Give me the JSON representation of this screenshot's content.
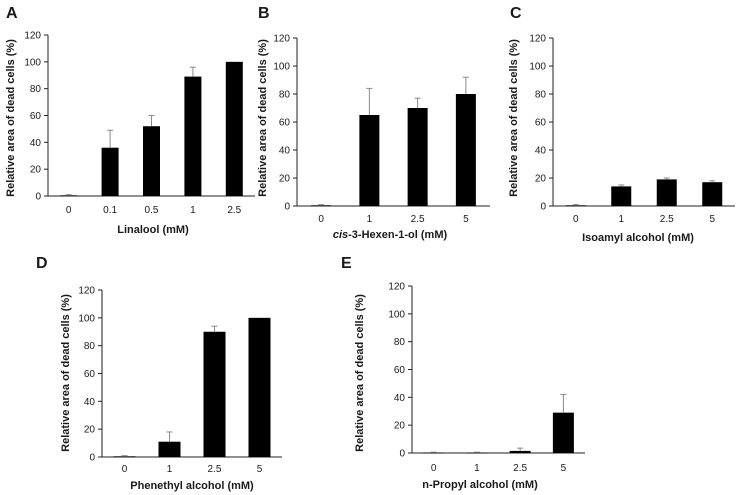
{
  "chart_data": [
    {
      "panel": "A",
      "type": "bar",
      "categories": [
        "0",
        "0.1",
        "0.5",
        "1",
        "2.5"
      ],
      "values": [
        0.5,
        36,
        52,
        89,
        100
      ],
      "errors": [
        0.5,
        13,
        8,
        7,
        0
      ],
      "xlabel": "Linalool (mM)",
      "xlabel_italic_prefix": "",
      "ylabel": "Relative area of dead cells (%)",
      "yticks": [
        "0",
        "20",
        "40",
        "60",
        "80",
        "100",
        "120"
      ],
      "ylim": [
        0,
        120
      ]
    },
    {
      "panel": "B",
      "type": "bar",
      "categories": [
        "0",
        "1",
        "2.5",
        "5"
      ],
      "values": [
        0.5,
        65,
        70,
        80
      ],
      "errors": [
        0.5,
        19,
        7,
        12
      ],
      "xlabel": "-3-Hexen-1-ol (mM)",
      "xlabel_italic_prefix": "cis",
      "ylabel": "Relative area of dead cells (%)",
      "yticks": [
        "0",
        "20",
        "40",
        "60",
        "80",
        "100",
        "120"
      ],
      "ylim": [
        0,
        120
      ]
    },
    {
      "panel": "C",
      "type": "bar",
      "categories": [
        "0",
        "1",
        "2.5",
        "5"
      ],
      "values": [
        0.5,
        14,
        19,
        17
      ],
      "errors": [
        0.5,
        1,
        1,
        1
      ],
      "xlabel": "Isoamyl alcohol (mM)",
      "xlabel_italic_prefix": "",
      "ylabel": "Relative area of dead cells (%)",
      "yticks": [
        "0",
        "20",
        "40",
        "60",
        "80",
        "100",
        "120"
      ],
      "ylim": [
        0,
        120
      ]
    },
    {
      "panel": "D",
      "type": "bar",
      "categories": [
        "0",
        "1",
        "2.5",
        "5"
      ],
      "values": [
        0.5,
        11,
        90,
        100
      ],
      "errors": [
        0.5,
        7,
        4,
        0
      ],
      "xlabel": "Phenethyl alcohol (mM)",
      "xlabel_italic_prefix": "",
      "ylabel": "Relative area of dead cells (%)",
      "yticks": [
        "0",
        "20",
        "40",
        "60",
        "80",
        "100",
        "120"
      ],
      "ylim": [
        0,
        120
      ]
    },
    {
      "panel": "E",
      "type": "bar",
      "categories": [
        "0",
        "1",
        "2.5",
        "5"
      ],
      "values": [
        0.3,
        0.3,
        1.5,
        29
      ],
      "errors": [
        0.3,
        0.3,
        2,
        13
      ],
      "xlabel": "n-Propyl  alcohol (mM)",
      "xlabel_italic_prefix": "",
      "ylabel": "Relative area of dead cells (%)",
      "yticks": [
        "0",
        "20",
        "40",
        "60",
        "80",
        "100",
        "120"
      ],
      "ylim": [
        0,
        120
      ]
    }
  ]
}
